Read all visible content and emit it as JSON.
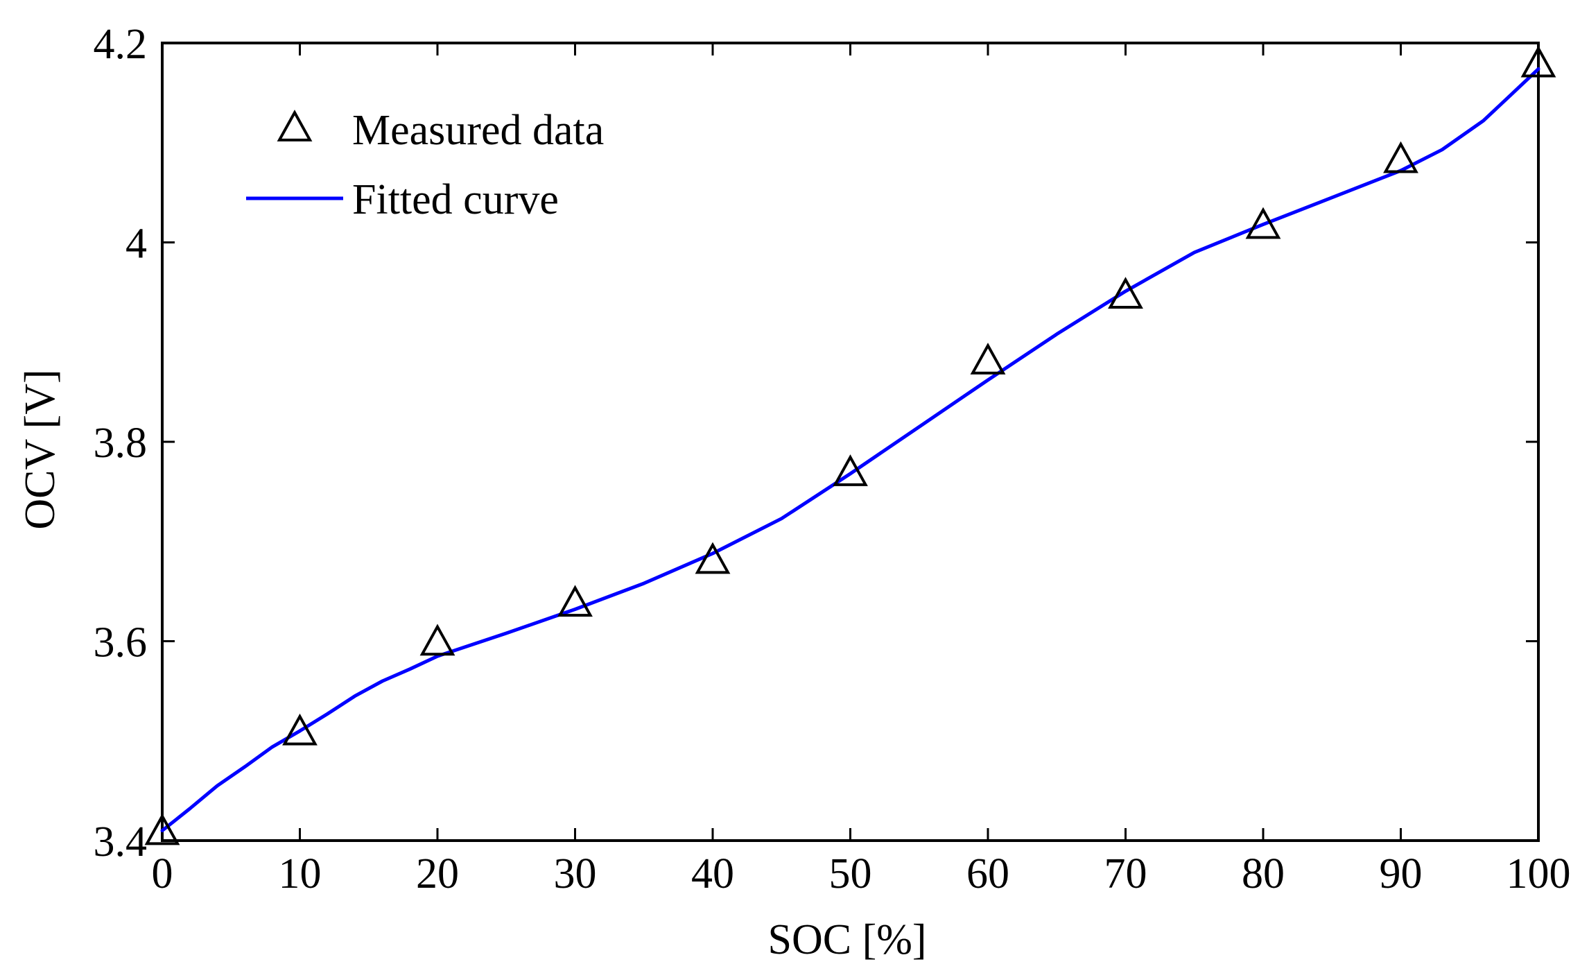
{
  "chart_data": {
    "type": "line",
    "title": "",
    "xlabel": "SOC [%]",
    "ylabel": "OCV [V]",
    "xlim": [
      0,
      100
    ],
    "ylim": [
      3.4,
      4.2
    ],
    "xticks": [
      0,
      10,
      20,
      30,
      40,
      50,
      60,
      70,
      80,
      90,
      100
    ],
    "yticks": [
      3.4,
      3.6,
      3.8,
      4.0,
      4.2
    ],
    "xtick_labels": [
      "0",
      "10",
      "20",
      "30",
      "40",
      "50",
      "60",
      "70",
      "80",
      "90",
      "100"
    ],
    "ytick_labels": [
      "3.4",
      "3.6",
      "3.8",
      "4",
      "4.2"
    ],
    "grid": false,
    "legend_position": "top-left",
    "series": [
      {
        "name": "Measured data",
        "style": "markers",
        "marker": "triangle",
        "color": "#000000",
        "x": [
          0,
          10,
          20,
          30,
          40,
          50,
          60,
          70,
          80,
          90,
          100
        ],
        "y": [
          3.408,
          3.508,
          3.598,
          3.637,
          3.68,
          3.768,
          3.88,
          3.946,
          4.016,
          4.082,
          4.178
        ]
      },
      {
        "name": "Fitted curve",
        "style": "line",
        "color": "#0000ff",
        "x": [
          0,
          2,
          4,
          6,
          8,
          10,
          12,
          14,
          16,
          18,
          20,
          25,
          30,
          35,
          40,
          45,
          50,
          55,
          60,
          65,
          70,
          75,
          80,
          85,
          90,
          93,
          96,
          98,
          100
        ],
        "y": [
          3.41,
          3.432,
          3.455,
          3.474,
          3.494,
          3.51,
          3.527,
          3.545,
          3.56,
          3.572,
          3.585,
          3.608,
          3.632,
          3.658,
          3.688,
          3.723,
          3.768,
          3.815,
          3.862,
          3.908,
          3.951,
          3.99,
          4.018,
          4.045,
          4.072,
          4.093,
          4.122,
          4.148,
          4.174
        ]
      }
    ]
  }
}
